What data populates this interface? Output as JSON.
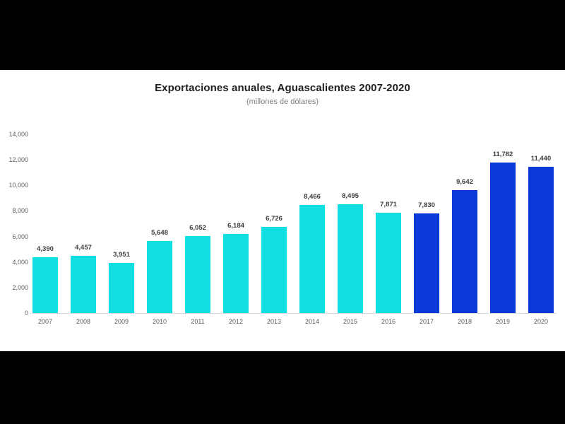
{
  "chart_data": {
    "type": "bar",
    "title": "Exportaciones anuales, Aguascalientes 2007-2020",
    "subtitle": "(millones de dólares)",
    "categories": [
      "2007",
      "2008",
      "2009",
      "2010",
      "2011",
      "2012",
      "2013",
      "2014",
      "2015",
      "2016",
      "2017",
      "2018",
      "2019",
      "2020"
    ],
    "values": [
      4390,
      4457,
      3951,
      5648,
      6052,
      6184,
      6726,
      8466,
      8495,
      7871,
      7830,
      9642,
      11782,
      11440
    ],
    "value_labels": [
      "4,390",
      "4,457",
      "3,951",
      "5,648",
      "6,052",
      "6,184",
      "6,726",
      "8,466",
      "8,495",
      "7,871",
      "7,830",
      "9,642",
      "11,782",
      "11,440"
    ],
    "bar_colors": [
      "cyan",
      "cyan",
      "cyan",
      "cyan",
      "cyan",
      "cyan",
      "cyan",
      "cyan",
      "cyan",
      "cyan",
      "blue",
      "blue",
      "blue",
      "blue"
    ],
    "palette": {
      "cyan": "#11DEE0",
      "blue": "#0B3AD8"
    },
    "xlabel": "",
    "ylabel": "",
    "ylim": [
      0,
      14000
    ],
    "yticks": [
      0,
      2000,
      4000,
      6000,
      8000,
      10000,
      12000,
      14000
    ],
    "ytick_labels": [
      "0",
      "2,000",
      "4,000",
      "6,000",
      "8,000",
      "10,000",
      "12,000",
      "14,000"
    ],
    "grid": false,
    "legend": "none"
  }
}
